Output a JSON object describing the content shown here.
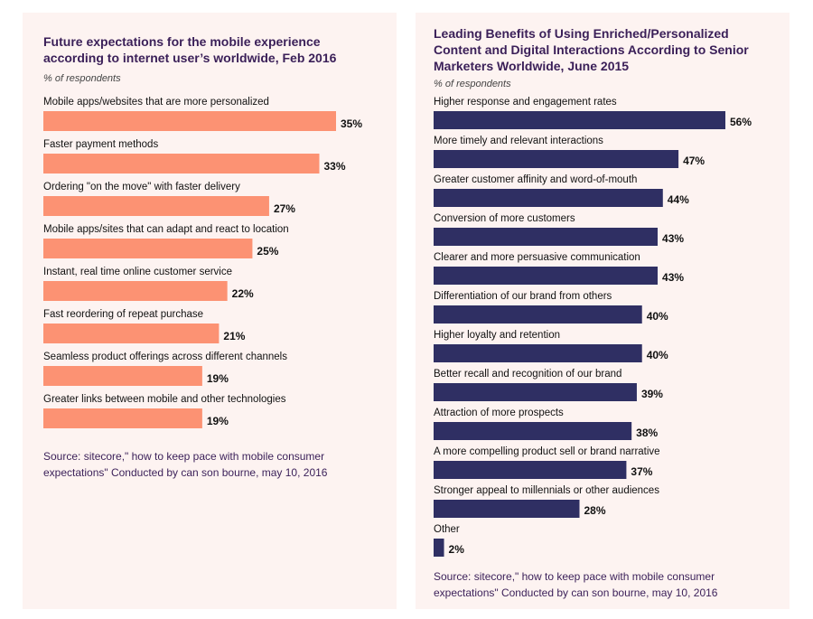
{
  "chart_data": [
    {
      "type": "bar",
      "orientation": "horizontal",
      "title": "Future expectations for the mobile experience according to internet user’s worldwide, Feb 2016",
      "subtitle": "% of respondents",
      "source": "Source: sitecore,\" how to keep pace with mobile consumer expectations\" Conducted by can son bourne, may 10, 2016",
      "color": "#fc9273",
      "value_suffix": "%",
      "categories": [
        "Mobile apps/websites that are more personalized",
        "Faster payment methods",
        "Ordering \"on the move\" with faster delivery",
        "Mobile apps/sites that can adapt and react to location",
        "Instant, real time online customer service",
        "Fast reordering of repeat purchase",
        "Seamless product offerings across different channels",
        "Greater links between mobile and other technologies"
      ],
      "values": [
        35,
        33,
        27,
        25,
        22,
        21,
        19,
        19
      ]
    },
    {
      "type": "bar",
      "orientation": "horizontal",
      "title": "Leading Benefits of Using Enriched/Personalized Content and Digital Interactions According to Senior Marketers Worldwide, June 2015",
      "subtitle": "% of respondents",
      "source": "Source: sitecore,\" how to keep pace with mobile consumer expectations\" Conducted by can son bourne, may 10, 2016",
      "color": "#2f2f63",
      "value_suffix": "%",
      "categories": [
        "Higher response and engagement rates",
        "More timely and relevant interactions",
        "Greater customer affinity and word-of-mouth",
        "Conversion of more customers",
        "Clearer and more persuasive communication",
        "Differentiation of our brand from others",
        "Higher loyalty and retention",
        "Better recall and recognition of our brand",
        "Attraction of more prospects",
        "A more compelling product sell or brand narrative",
        "Stronger appeal to millennials or other audiences",
        "Other"
      ],
      "values": [
        56,
        47,
        44,
        43,
        43,
        40,
        40,
        39,
        38,
        37,
        28,
        2
      ]
    }
  ]
}
